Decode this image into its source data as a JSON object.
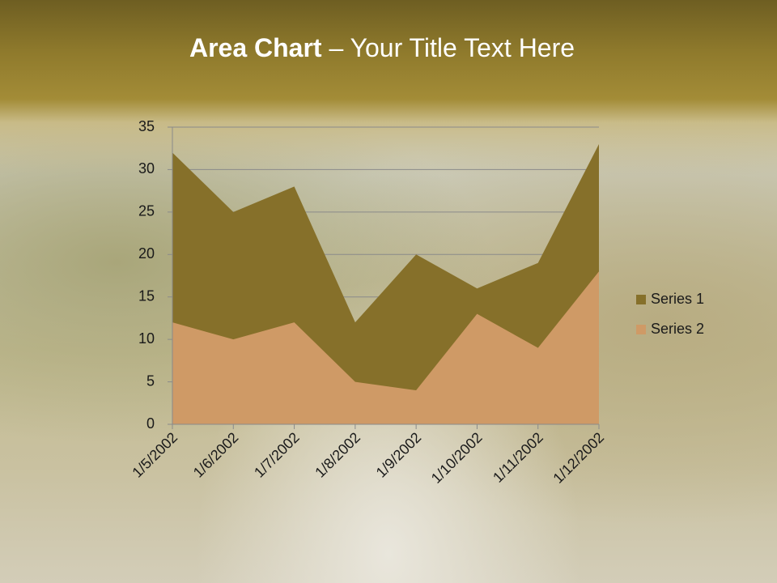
{
  "chart_data": {
    "type": "area",
    "title_bold": "Area Chart",
    "title_rest": " – Your Title Text Here",
    "categories": [
      "1/5/2002",
      "1/6/2002",
      "1/7/2002",
      "1/8/2002",
      "1/9/2002",
      "1/10/2002",
      "1/11/2002",
      "1/12/2002"
    ],
    "series": [
      {
        "name": "Series 1",
        "color": "#86702a",
        "values": [
          32,
          25,
          28,
          12,
          20,
          16,
          19,
          33
        ]
      },
      {
        "name": "Series 2",
        "color": "#cf9a66",
        "values": [
          12,
          10,
          12,
          5,
          4,
          13,
          9,
          18
        ]
      }
    ],
    "ylim": [
      0,
      35
    ],
    "yticks": [
      0,
      5,
      10,
      15,
      20,
      25,
      30,
      35
    ],
    "grid": true,
    "legend": "right"
  }
}
